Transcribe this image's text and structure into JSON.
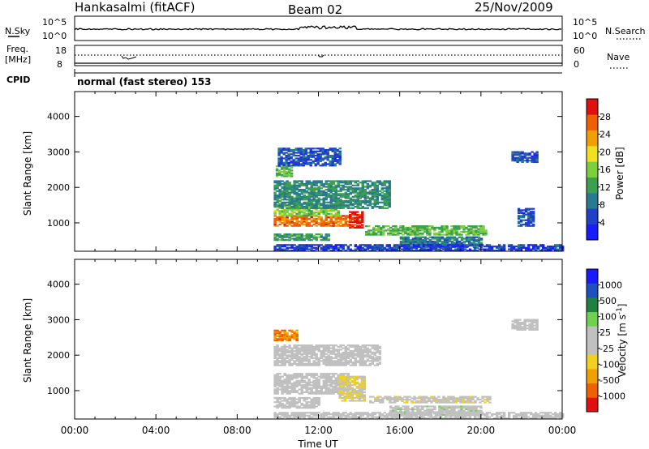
{
  "header": {
    "station": "Hankasalmi (fitACF)",
    "beam": "Beam 02",
    "date": "25/Nov/2009"
  },
  "panels": {
    "nsky": {
      "left_label": "N.Sky",
      "left_ticks": [
        "10^5",
        "10^0"
      ],
      "right_label": "N.Search",
      "right_ticks": [
        "10^5",
        "10^0"
      ]
    },
    "freq": {
      "left_label_1": "Freq.",
      "left_label_2": "[MHz]",
      "left_ticks": [
        "18",
        "8"
      ],
      "right_label": "Nave",
      "right_ticks": [
        "60",
        "0"
      ]
    },
    "cpid": {
      "label": "CPID",
      "mode": "normal (fast stereo) 153"
    }
  },
  "colors": {
    "power_scale": [
      "#1a1aff",
      "#2040c8",
      "#287a90",
      "#3ca050",
      "#7cd040",
      "#f0e020",
      "#f0a000",
      "#f06000",
      "#e01010"
    ],
    "velocity_scale": [
      "#e01010",
      "#f06000",
      "#f0a000",
      "#f0d020",
      "#c0c0c0",
      "#c0c0c0",
      "#70d050",
      "#208040",
      "#2050c0",
      "#1a1aff"
    ],
    "ground_scatter": "#c0c0c0"
  },
  "chart_data": [
    {
      "type": "heatmap",
      "title": "",
      "xlabel": "",
      "ylabel": "Slant Range [km]",
      "xlim": [
        0,
        24
      ],
      "ylim": [
        200,
        4700
      ],
      "x_tick_labels": [
        "00:00",
        "04:00",
        "08:00",
        "12:00",
        "16:00",
        "20:00",
        "00:00"
      ],
      "y_ticks": [
        1000,
        2000,
        3000,
        4000
      ],
      "colorbar": {
        "label": "Power [dB]",
        "ticks": [
          "4",
          "8",
          "12",
          "16",
          "20",
          "24",
          "28"
        ],
        "range": [
          0,
          32
        ]
      },
      "regions": [
        {
          "x": [
            9.8,
            13.6
          ],
          "y": [
            900,
            1200
          ],
          "value": 26
        },
        {
          "x": [
            13.5,
            14.2
          ],
          "y": [
            850,
            1300
          ],
          "value": 30
        },
        {
          "x": [
            9.8,
            13.0
          ],
          "y": [
            1200,
            1500
          ],
          "value": 16
        },
        {
          "x": [
            9.8,
            12.5
          ],
          "y": [
            500,
            700
          ],
          "value": 12
        },
        {
          "x": [
            9.8,
            15.5
          ],
          "y": [
            1400,
            2200
          ],
          "value": 10
        },
        {
          "x": [
            9.9,
            10.7
          ],
          "y": [
            2300,
            2600
          ],
          "value": 14
        },
        {
          "x": [
            10.0,
            13.0
          ],
          "y": [
            2600,
            3100
          ],
          "value": 6
        },
        {
          "x": [
            14.3,
            20.3
          ],
          "y": [
            650,
            900
          ],
          "value": 14
        },
        {
          "x": [
            16.0,
            20.0
          ],
          "y": [
            300,
            600
          ],
          "value": 9
        },
        {
          "x": [
            21.5,
            22.8
          ],
          "y": [
            2700,
            3000
          ],
          "value": 6
        },
        {
          "x": [
            21.8,
            22.6
          ],
          "y": [
            900,
            1400
          ],
          "value": 6
        },
        {
          "x": [
            9.8,
            24.0
          ],
          "y": [
            200,
            400
          ],
          "value": 5
        }
      ]
    },
    {
      "type": "heatmap",
      "title": "",
      "xlabel": "Time UT",
      "ylabel": "Slant Range [km]",
      "xlim": [
        0,
        24
      ],
      "ylim": [
        200,
        4700
      ],
      "x_tick_labels": [
        "00:00",
        "04:00",
        "08:00",
        "12:00",
        "16:00",
        "20:00",
        "00:00"
      ],
      "y_ticks": [
        1000,
        2000,
        3000,
        4000
      ],
      "colorbar": {
        "label": "Velocity [m s^-1]",
        "ticks": [
          "1000",
          "500",
          "100",
          "25",
          "-25",
          "-100",
          "-500",
          "-1000"
        ],
        "range": [
          -1000,
          1000
        ]
      },
      "regions": [
        {
          "x": [
            9.8,
            10.9
          ],
          "y": [
            2400,
            2700
          ],
          "value": -600
        },
        {
          "x": [
            9.8,
            15.0
          ],
          "y": [
            1700,
            2300
          ],
          "value": 0
        },
        {
          "x": [
            9.8,
            13.5
          ],
          "y": [
            900,
            1500
          ],
          "value": 0
        },
        {
          "x": [
            9.8,
            12.0
          ],
          "y": [
            500,
            800
          ],
          "value": 0
        },
        {
          "x": [
            13.0,
            14.3
          ],
          "y": [
            700,
            1400
          ],
          "value": -200
        },
        {
          "x": [
            14.5,
            20.5
          ],
          "y": [
            650,
            850
          ],
          "value": -80
        },
        {
          "x": [
            15.5,
            20.0
          ],
          "y": [
            300,
            550
          ],
          "value": 60
        },
        {
          "x": [
            21.5,
            22.8
          ],
          "y": [
            2700,
            3000
          ],
          "value": 0
        },
        {
          "x": [
            9.8,
            24.0
          ],
          "y": [
            200,
            380
          ],
          "value": 0
        }
      ]
    }
  ]
}
